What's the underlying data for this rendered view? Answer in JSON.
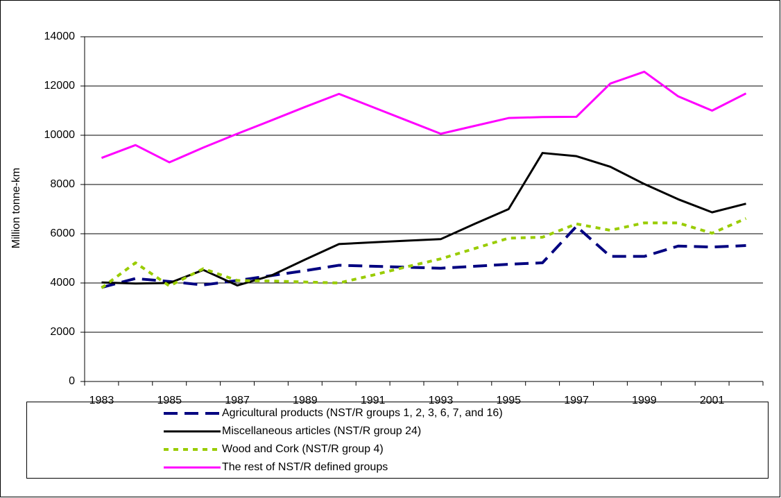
{
  "chart_data": {
    "type": "line",
    "y_label": "Million tonne-km",
    "categories": [
      "1983",
      null,
      "1985",
      null,
      "1987",
      null,
      "1989",
      null,
      "1991",
      null,
      "1993",
      null,
      "1995",
      null,
      "1997",
      null,
      "1999",
      null,
      "2001",
      null
    ],
    "series": [
      {
        "name": "Agricultural products (NST/R groups 1, 2, 3, 6, 7, and 16)",
        "color": "#000080",
        "dash": "dashed",
        "values": [
          3820,
          4180,
          4060,
          3920,
          4100,
          4300,
          4500,
          4720,
          4680,
          4640,
          4600,
          4680,
          4760,
          4820,
          6300,
          5080,
          5080,
          5500,
          5460,
          5520
        ]
      },
      {
        "name": "Miscellaneous articles (NST/R group 24)",
        "color": "#000000",
        "dash": "solid",
        "values": [
          4020,
          3980,
          4000,
          4530,
          3900,
          4300,
          4950,
          5580,
          5650,
          5720,
          5780,
          6400,
          7000,
          9280,
          9150,
          8720,
          8020,
          7400,
          6870,
          7220
        ]
      },
      {
        "name": "Wood and Cork (NST/R group 4)",
        "color": "#99cc00",
        "dash": "dotted",
        "values": [
          3800,
          4820,
          3880,
          4580,
          4100,
          4080,
          4040,
          4000,
          4320,
          4660,
          4980,
          5400,
          5820,
          5860,
          6400,
          6140,
          6440,
          6440,
          6020,
          6620
        ]
      },
      {
        "name": "The rest of NST/R defined groups",
        "color": "#ff00ff",
        "dash": "solid",
        "values": [
          9080,
          9600,
          8900,
          9500,
          10060,
          10600,
          11150,
          11680,
          11140,
          10600,
          10060,
          10380,
          10700,
          10740,
          10750,
          12100,
          12580,
          11580,
          11000,
          11700
        ]
      }
    ],
    "ylim": [
      0,
      14000
    ],
    "yticks": [
      0,
      2000,
      4000,
      6000,
      8000,
      10000,
      12000,
      14000
    ],
    "grid": true,
    "legend": "bottom"
  }
}
